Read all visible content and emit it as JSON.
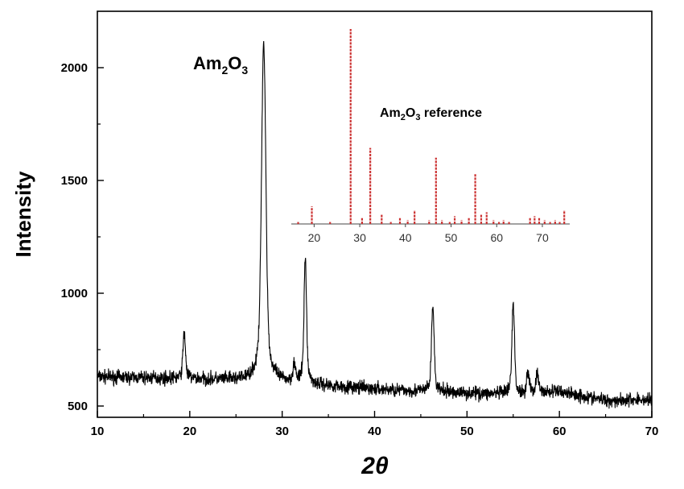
{
  "chart_data": [
    {
      "type": "line",
      "xlabel": "2θ",
      "ylabel": "Intensity",
      "xlim": [
        10,
        70
      ],
      "ylim": [
        450,
        2250
      ],
      "x_ticks": [
        10,
        20,
        30,
        40,
        50,
        60,
        70
      ],
      "y_ticks": [
        500,
        1000,
        1500,
        2000
      ],
      "grid": false,
      "annotation": {
        "base": "Am",
        "sub1": "2",
        "mid": "O",
        "sub2": "3"
      },
      "series": [
        {
          "color": "#000000",
          "baseline": [
            [
              10,
              630
            ],
            [
              20,
              620
            ],
            [
              25,
              615
            ],
            [
              30,
              605
            ],
            [
              35,
              590
            ],
            [
              40,
              575
            ],
            [
              45,
              565
            ],
            [
              50,
              558
            ],
            [
              55,
              550
            ],
            [
              60,
              565
            ],
            [
              63,
              540
            ],
            [
              65,
              525
            ],
            [
              70,
              528
            ]
          ],
          "noise_amplitude": 30,
          "peaks": [
            {
              "x": 19.4,
              "height": 820
            },
            {
              "x": 28.0,
              "height": 2110
            },
            {
              "x": 31.3,
              "height": 680
            },
            {
              "x": 32.5,
              "height": 1145
            },
            {
              "x": 46.3,
              "height": 945
            },
            {
              "x": 55.0,
              "height": 950
            },
            {
              "x": 56.6,
              "height": 650
            },
            {
              "x": 57.6,
              "height": 640
            }
          ]
        }
      ]
    },
    {
      "type": "bar",
      "title": {
        "base": "Am",
        "sub1": "2",
        "mid": "O",
        "sub2": "3",
        "rest": " reference"
      },
      "xlim": [
        15,
        76
      ],
      "x_ticks": [
        20,
        30,
        40,
        50,
        60,
        70
      ],
      "ylim": [
        0,
        100
      ],
      "color": "#cc3333",
      "sticks": [
        {
          "x": 16.5,
          "y": 1
        },
        {
          "x": 19.5,
          "y": 9
        },
        {
          "x": 23.5,
          "y": 1
        },
        {
          "x": 28.0,
          "y": 100
        },
        {
          "x": 30.5,
          "y": 3
        },
        {
          "x": 32.3,
          "y": 39
        },
        {
          "x": 34.8,
          "y": 5
        },
        {
          "x": 36.8,
          "y": 1
        },
        {
          "x": 38.8,
          "y": 3
        },
        {
          "x": 40.5,
          "y": 2
        },
        {
          "x": 42.0,
          "y": 7
        },
        {
          "x": 45.2,
          "y": 2
        },
        {
          "x": 46.7,
          "y": 34
        },
        {
          "x": 48.0,
          "y": 2
        },
        {
          "x": 49.7,
          "y": 1
        },
        {
          "x": 50.8,
          "y": 4
        },
        {
          "x": 52.3,
          "y": 2
        },
        {
          "x": 53.9,
          "y": 3
        },
        {
          "x": 55.3,
          "y": 26
        },
        {
          "x": 56.6,
          "y": 5
        },
        {
          "x": 57.8,
          "y": 6
        },
        {
          "x": 59.3,
          "y": 2
        },
        {
          "x": 60.5,
          "y": 1
        },
        {
          "x": 61.5,
          "y": 2
        },
        {
          "x": 62.7,
          "y": 1
        },
        {
          "x": 67.3,
          "y": 3
        },
        {
          "x": 68.3,
          "y": 4
        },
        {
          "x": 69.3,
          "y": 3
        },
        {
          "x": 70.5,
          "y": 2
        },
        {
          "x": 71.7,
          "y": 1
        },
        {
          "x": 72.8,
          "y": 2
        },
        {
          "x": 73.8,
          "y": 1
        },
        {
          "x": 74.8,
          "y": 7
        }
      ]
    }
  ]
}
